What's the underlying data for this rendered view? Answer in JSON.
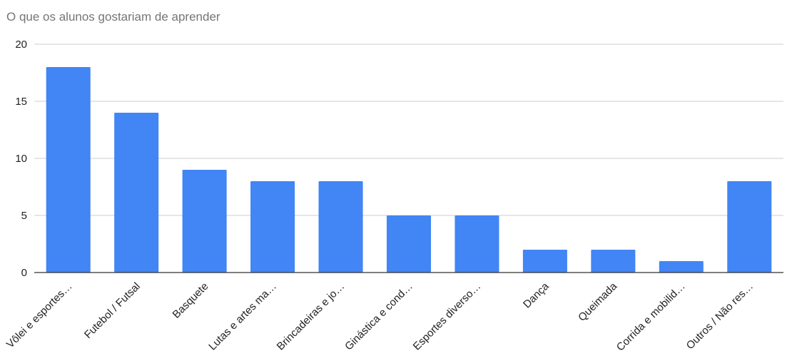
{
  "chart_data": {
    "type": "bar",
    "title": "O que os alunos gostariam de aprender",
    "xlabel": "",
    "ylabel": "",
    "categories": [
      "Vôlei e esportes…",
      "Futebol / Futsal",
      "Basquete",
      "Lutas e artes ma…",
      "Brincadeiras e jo…",
      "Ginástica e cond…",
      "Esportes diverso…",
      "Dança",
      "Queimada",
      "Corrida e mobilid…",
      "Outros / Não res…"
    ],
    "values": [
      18,
      14,
      9,
      8,
      8,
      5,
      5,
      2,
      2,
      1,
      8
    ],
    "ylim": [
      0,
      20
    ],
    "yticks": [
      "0",
      "5",
      "10",
      "15",
      "20"
    ],
    "grid": true,
    "bar_color": "#4285f4",
    "legend": "none"
  }
}
